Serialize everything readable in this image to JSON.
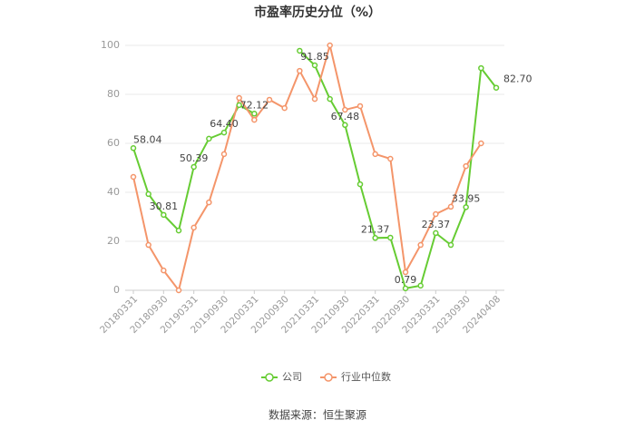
{
  "chart_data": {
    "type": "line",
    "title": "市盈率历史分位（%）",
    "categories": [
      "20180331",
      null,
      "20180930",
      null,
      "20190331",
      null,
      "20190930",
      null,
      "20200331",
      null,
      "20200930",
      null,
      "20210331",
      null,
      "20210930",
      null,
      "20220331",
      null,
      "20220930",
      null,
      "20230331",
      null,
      "20230930",
      null,
      "20240408"
    ],
    "series": [
      {
        "name": "公司",
        "color": "#66cc33",
        "values": [
          58.04,
          39.3,
          30.81,
          24.4,
          50.39,
          61.9,
          64.4,
          75.6,
          72.12,
          null,
          null,
          97.8,
          91.85,
          78.1,
          67.48,
          43.3,
          21.37,
          21.5,
          0.79,
          1.9,
          23.37,
          18.5,
          33.95,
          90.7,
          82.7
        ],
        "value_labels": [
          "58.04",
          null,
          "30.81",
          null,
          "50.39",
          null,
          "64.40",
          null,
          "72.12",
          null,
          null,
          null,
          "91.85",
          null,
          "67.48",
          null,
          "21.37",
          null,
          "0.79",
          null,
          "23.37",
          null,
          "33.95",
          null,
          "82.70"
        ]
      },
      {
        "name": "行业中位数",
        "color": "#f4956a",
        "values": [
          46.3,
          18.5,
          8.1,
          0,
          25.6,
          35.9,
          55.6,
          78.5,
          69.6,
          77.8,
          74.4,
          89.6,
          78.1,
          100,
          73.7,
          75.2,
          55.6,
          53.7,
          7.4,
          18.5,
          31.1,
          34.1,
          50.7,
          60,
          null
        ]
      }
    ],
    "ylim": [
      0,
      100
    ],
    "yticks": [
      0,
      20,
      40,
      60,
      80,
      100
    ],
    "grid": true,
    "source": "数据来源：恒生聚源"
  }
}
